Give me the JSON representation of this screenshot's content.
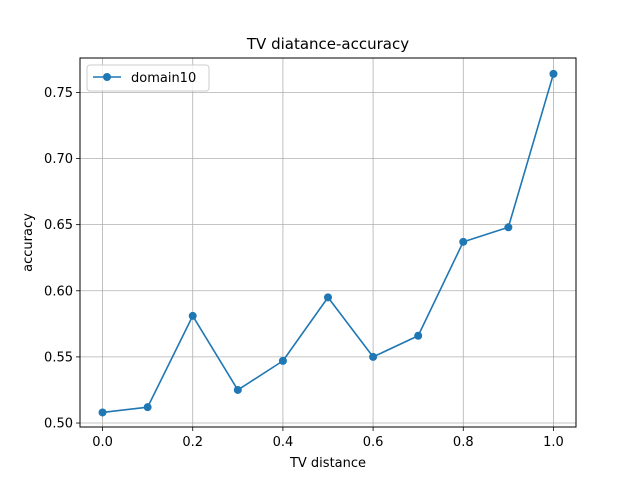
{
  "chart_data": {
    "type": "line",
    "title": "TV diatance-accuracy",
    "xlabel": "TV distance",
    "ylabel": "accuracy",
    "xlim": [
      -0.05,
      1.05
    ],
    "ylim": [
      0.497,
      0.776
    ],
    "xticks": [
      0.0,
      0.2,
      0.4,
      0.6,
      0.8,
      1.0
    ],
    "xtick_labels": [
      "0.0",
      "0.2",
      "0.4",
      "0.6",
      "0.8",
      "1.0"
    ],
    "yticks": [
      0.5,
      0.55,
      0.6,
      0.65,
      0.7,
      0.75
    ],
    "ytick_labels": [
      "0.50",
      "0.55",
      "0.60",
      "0.65",
      "0.70",
      "0.75"
    ],
    "grid": true,
    "legend_position": "upper-left",
    "series": [
      {
        "name": "domain10",
        "color": "#1f77b4",
        "marker": "circle",
        "x": [
          0.0,
          0.1,
          0.2,
          0.3,
          0.4,
          0.5,
          0.6,
          0.7,
          0.8,
          0.9,
          1.0
        ],
        "y": [
          0.508,
          0.512,
          0.581,
          0.525,
          0.547,
          0.595,
          0.55,
          0.566,
          0.637,
          0.648,
          0.764
        ]
      }
    ]
  }
}
